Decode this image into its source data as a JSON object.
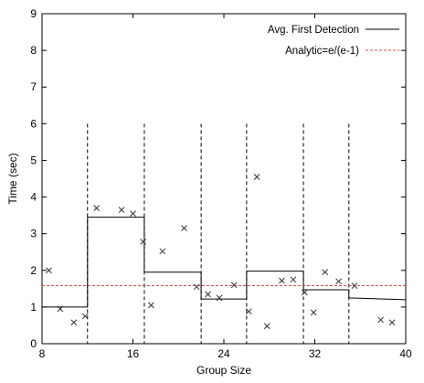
{
  "chart_data": {
    "type": "line",
    "title": "",
    "xlabel": "Group Size",
    "ylabel": "Time (sec)",
    "xlim": [
      8,
      40
    ],
    "ylim": [
      0,
      9
    ],
    "x_ticks": [
      8,
      16,
      24,
      32,
      40
    ],
    "y_ticks": [
      0,
      1,
      2,
      3,
      4,
      5,
      6,
      7,
      8,
      9
    ],
    "grid": false,
    "legend_position": "top-right",
    "series": [
      {
        "name": "Avg. First Detection",
        "style": "step",
        "color": "#000000",
        "x": [
          8,
          12,
          12,
          17,
          17,
          22,
          22,
          26,
          26,
          31,
          31,
          35,
          35,
          40
        ],
        "y": [
          1.0,
          1.0,
          3.45,
          3.45,
          1.95,
          1.95,
          1.22,
          1.22,
          1.98,
          1.98,
          1.47,
          1.47,
          1.25,
          1.2
        ]
      },
      {
        "name": "Analytic=e/(e-1)",
        "style": "dashed",
        "color": "#c8504e",
        "x": [
          8,
          40
        ],
        "y": [
          1.582,
          1.582
        ]
      },
      {
        "name": "",
        "style": "markers",
        "marker": "x",
        "color": "#333333",
        "x": [
          8.6,
          9.6,
          10.8,
          11.8,
          12.8,
          15,
          16,
          16.9,
          17.6,
          18.6,
          20.5,
          21.6,
          22.6,
          23.6,
          24.9,
          26.2,
          26.9,
          27.8,
          29.1,
          30.1,
          31.1,
          31.9,
          32.9,
          34.1,
          35.5,
          37.8,
          38.8
        ],
        "y": [
          2.0,
          0.95,
          0.58,
          0.75,
          3.7,
          3.65,
          3.55,
          2.78,
          1.05,
          2.52,
          3.15,
          1.55,
          1.35,
          1.25,
          1.6,
          0.88,
          4.55,
          0.48,
          1.72,
          1.75,
          1.4,
          0.85,
          1.95,
          1.7,
          1.58,
          0.65,
          0.58
        ]
      }
    ],
    "vertical_dashed_lines": [
      12,
      17,
      22,
      26,
      31,
      35
    ]
  }
}
